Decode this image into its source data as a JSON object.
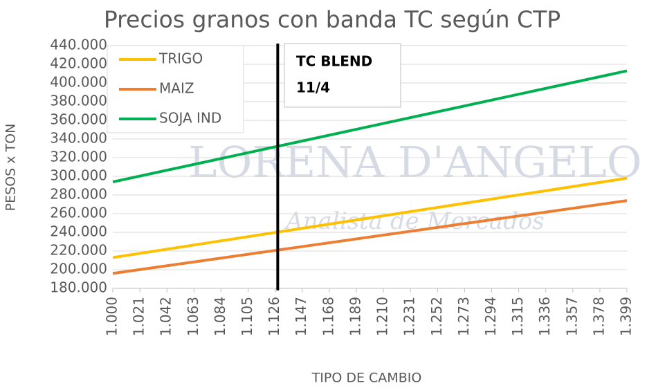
{
  "chart_data": {
    "type": "line",
    "title": "Precios granos con banda TC según CTP",
    "xlabel": "TIPO DE CAMBIO",
    "ylabel": "PESOS x TON",
    "x": [
      1000,
      1399
    ],
    "series": [
      {
        "name": "TRIGO",
        "color": "#ffc000",
        "values": [
          213000,
          298000
        ]
      },
      {
        "name": "MAIZ",
        "color": "#ed7d31",
        "values": [
          196000,
          274000
        ]
      },
      {
        "name": "SOJA IND",
        "color": "#00b050",
        "values": [
          294000,
          413000
        ]
      }
    ],
    "xlim": [
      1000,
      1399
    ],
    "xticks": [
      {
        "value": 1000,
        "label": "1.000"
      },
      {
        "value": 1021,
        "label": "1.021"
      },
      {
        "value": 1042,
        "label": "1.042"
      },
      {
        "value": 1063,
        "label": "1.063"
      },
      {
        "value": 1084,
        "label": "1.084"
      },
      {
        "value": 1105,
        "label": "1.105"
      },
      {
        "value": 1126,
        "label": "1.126"
      },
      {
        "value": 1147,
        "label": "1.147"
      },
      {
        "value": 1168,
        "label": "1.168"
      },
      {
        "value": 1189,
        "label": "1.189"
      },
      {
        "value": 1210,
        "label": "1.210"
      },
      {
        "value": 1231,
        "label": "1.231"
      },
      {
        "value": 1252,
        "label": "1.252"
      },
      {
        "value": 1273,
        "label": "1.273"
      },
      {
        "value": 1294,
        "label": "1.294"
      },
      {
        "value": 1315,
        "label": "1.315"
      },
      {
        "value": 1336,
        "label": "1.336"
      },
      {
        "value": 1357,
        "label": "1.357"
      },
      {
        "value": 1378,
        "label": "1.378"
      },
      {
        "value": 1399,
        "label": "1.399"
      }
    ],
    "ylim": [
      180000,
      440000
    ],
    "yticks": [
      {
        "value": 180000,
        "label": "180.000"
      },
      {
        "value": 200000,
        "label": "200.000"
      },
      {
        "value": 220000,
        "label": "220.000"
      },
      {
        "value": 240000,
        "label": "240.000"
      },
      {
        "value": 260000,
        "label": "260.000"
      },
      {
        "value": 280000,
        "label": "280.000"
      },
      {
        "value": 300000,
        "label": "300.000"
      },
      {
        "value": 320000,
        "label": "320.000"
      },
      {
        "value": 340000,
        "label": "340.000"
      },
      {
        "value": 360000,
        "label": "360.000"
      },
      {
        "value": 380000,
        "label": "380.000"
      },
      {
        "value": 400000,
        "label": "400.000"
      },
      {
        "value": 420000,
        "label": "420.000"
      },
      {
        "value": 440000,
        "label": "440.000"
      }
    ],
    "grid": true,
    "marker_x": 1128,
    "annotation": [
      "TC BLEND",
      "11/4"
    ],
    "watermark": [
      "LORENA D'ANGELO",
      "Analista de Mercados"
    ]
  }
}
